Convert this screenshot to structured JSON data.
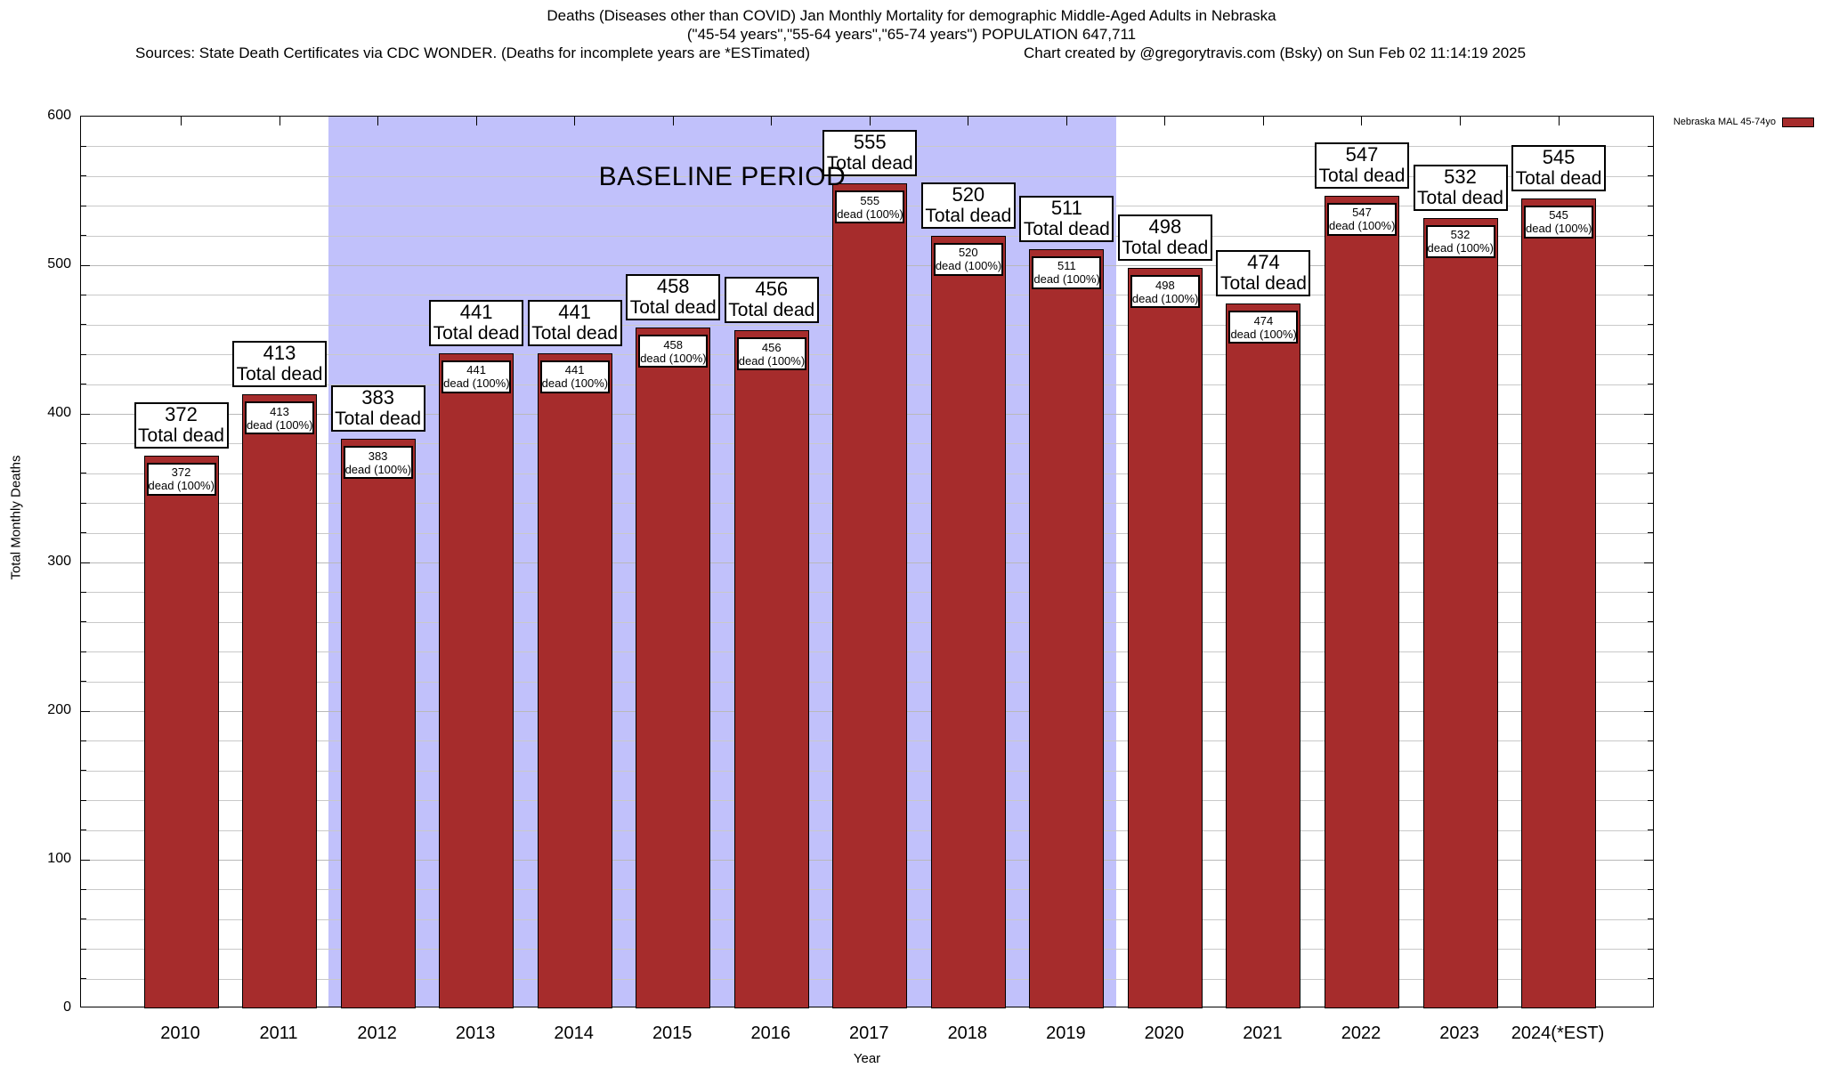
{
  "header": {
    "title_line1": "Deaths (Diseases other than COVID) Jan Monthly Mortality for demographic Middle-Aged Adults in Nebraska",
    "title_line2": "(\"45-54 years\",\"55-64 years\",\"65-74 years\") POPULATION 647,711",
    "sources": "Sources: State Death Certificates via CDC WONDER. (Deaths for incomplete years are *ESTimated)",
    "credit": "Chart created by @gregorytravis.com (Bsky) on Sun Feb 02 11:14:19 2025"
  },
  "legend": {
    "label": "Nebraska MAL 45-74yo",
    "swatch_color": "#a62c2c"
  },
  "chart_data": {
    "type": "bar",
    "title": "Deaths (Diseases other than COVID) Jan Monthly Mortality for demographic Middle-Aged Adults in Nebraska",
    "xlabel": "Year",
    "ylabel": "Total Monthly Deaths",
    "ylim": [
      0,
      600
    ],
    "yticks": [
      0,
      100,
      200,
      300,
      400,
      500,
      600
    ],
    "ytick_minor_interval": 20,
    "grid": true,
    "legend_position": "top-right-outside",
    "categories": [
      "2010",
      "2011",
      "2012",
      "2013",
      "2014",
      "2015",
      "2016",
      "2017",
      "2018",
      "2019",
      "2020",
      "2021",
      "2022",
      "2023",
      "2024(*EST)"
    ],
    "values": [
      372,
      413,
      383,
      441,
      441,
      458,
      456,
      555,
      520,
      511,
      498,
      474,
      547,
      532,
      545
    ],
    "bar_color": "#a62c2c",
    "outer_label_suffix": "Total dead",
    "inner_label_suffix": "dead (100%)",
    "baseline": {
      "label": "BASELINE PERIOD",
      "from_category": "2012",
      "to_category": "2019",
      "color": "#c1c1fb"
    }
  }
}
